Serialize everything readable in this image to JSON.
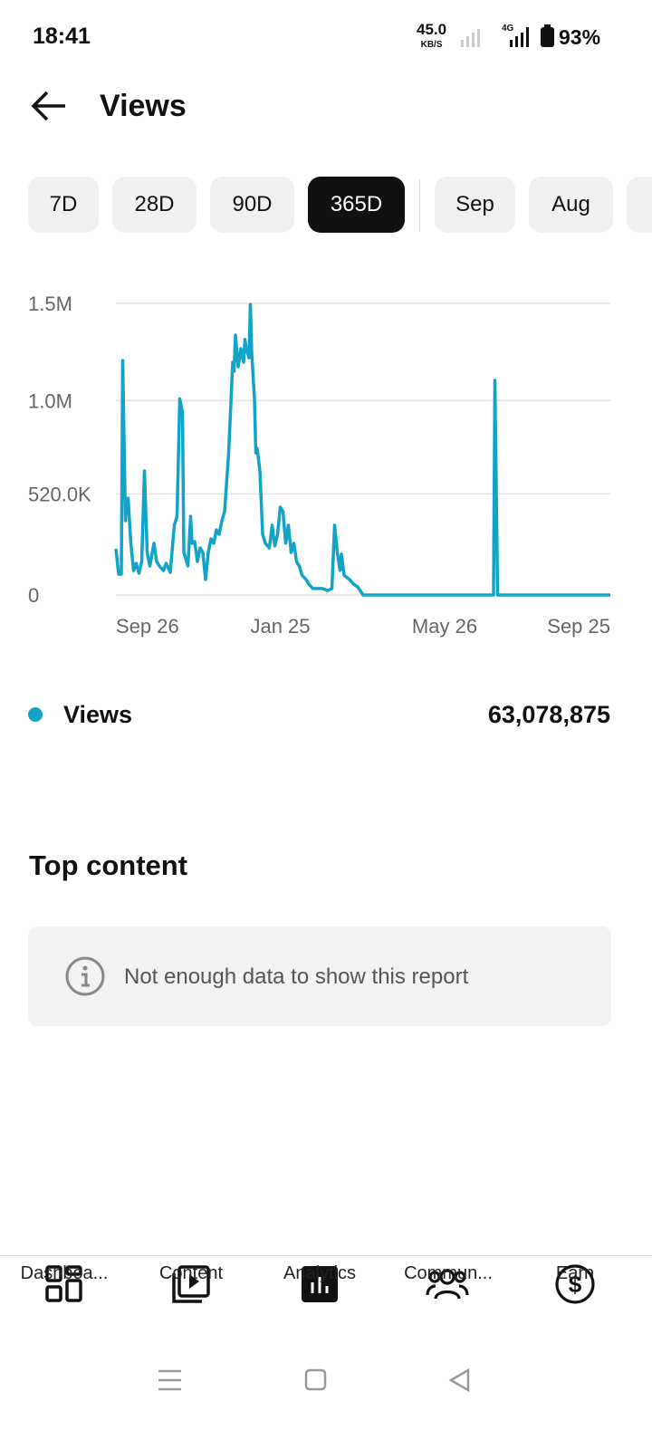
{
  "status_bar": {
    "time": "18:41",
    "speed": "45.0",
    "speed_unit": "KB/S",
    "network": "4G",
    "battery": "93%"
  },
  "header": {
    "title": "Views"
  },
  "tabs": [
    {
      "label": "7D"
    },
    {
      "label": "28D"
    },
    {
      "label": "90D"
    },
    {
      "label": "365D",
      "selected": true
    },
    {
      "label": "Sep"
    },
    {
      "label": "Aug"
    }
  ],
  "chart_data": {
    "type": "line",
    "x": [
      0,
      2,
      4,
      5,
      7,
      8,
      9,
      11,
      13,
      15,
      17,
      19,
      21,
      23,
      25,
      28,
      30,
      32,
      35,
      37,
      40,
      43,
      45,
      47,
      49,
      50,
      53,
      55,
      56,
      58,
      60,
      62,
      64,
      66,
      68,
      70,
      72,
      74,
      76,
      78,
      80,
      83,
      86,
      87,
      88,
      90,
      92,
      94,
      95,
      96,
      98,
      99,
      100,
      102,
      103,
      104,
      106,
      108,
      110,
      113,
      115,
      117,
      119,
      121,
      123,
      125,
      127,
      129,
      131,
      133,
      135,
      137,
      140,
      142,
      145,
      148,
      152,
      156,
      159,
      161,
      163,
      165,
      166,
      168,
      172,
      175,
      178,
      182,
      278,
      279,
      281,
      364
    ],
    "series": [
      {
        "name": "Views",
        "color": "#12a4c8",
        "values": [
          238000,
          107000,
          107000,
          1206000,
          382000,
          475000,
          498000,
          266000,
          126000,
          163000,
          112000,
          172000,
          638000,
          219000,
          149000,
          266000,
          172000,
          149000,
          126000,
          163000,
          116000,
          359000,
          405000,
          1010000,
          941000,
          219000,
          149000,
          405000,
          266000,
          275000,
          172000,
          242000,
          219000,
          79000,
          219000,
          289000,
          266000,
          335000,
          312000,
          382000,
          429000,
          731000,
          1197000,
          1151000,
          1337000,
          1174000,
          1267000,
          1197000,
          1314000,
          1267000,
          1220000,
          1495000,
          1244000,
          1010000,
          731000,
          755000,
          638000,
          312000,
          266000,
          242000,
          359000,
          252000,
          312000,
          452000,
          429000,
          266000,
          359000,
          219000,
          266000,
          172000,
          149000,
          102000,
          79000,
          56000,
          33000,
          33000,
          33000,
          23000,
          33000,
          359000,
          219000,
          126000,
          210000,
          102000,
          79000,
          56000,
          42000,
          0,
          0,
          1104000,
          0,
          0
        ]
      }
    ],
    "xlim": [
      0,
      364
    ],
    "xticks": [
      {
        "value": 0,
        "label": "Sep 26"
      },
      {
        "value": 121,
        "label": "Jan 25"
      },
      {
        "value": 242,
        "label": "May 26"
      },
      {
        "value": 364,
        "label": "Sep 25"
      }
    ],
    "ylim": [
      0,
      1500000
    ],
    "yticks": [
      0,
      {
        "value": 520000,
        "label": "520.0K"
      },
      {
        "value": 1000000,
        "label": "1.0M"
      },
      {
        "value": 1500000,
        "label": "1.5M"
      }
    ],
    "grid": true
  },
  "legend": {
    "total": "63,078,875"
  },
  "top_content": {
    "title": "Top content",
    "message": "Not enough data to show this report"
  },
  "nav": [
    {
      "label": "Dashboa..."
    },
    {
      "label": "Content"
    },
    {
      "label": "Analytics"
    },
    {
      "label": "Commun..."
    },
    {
      "label": "Earn"
    }
  ]
}
